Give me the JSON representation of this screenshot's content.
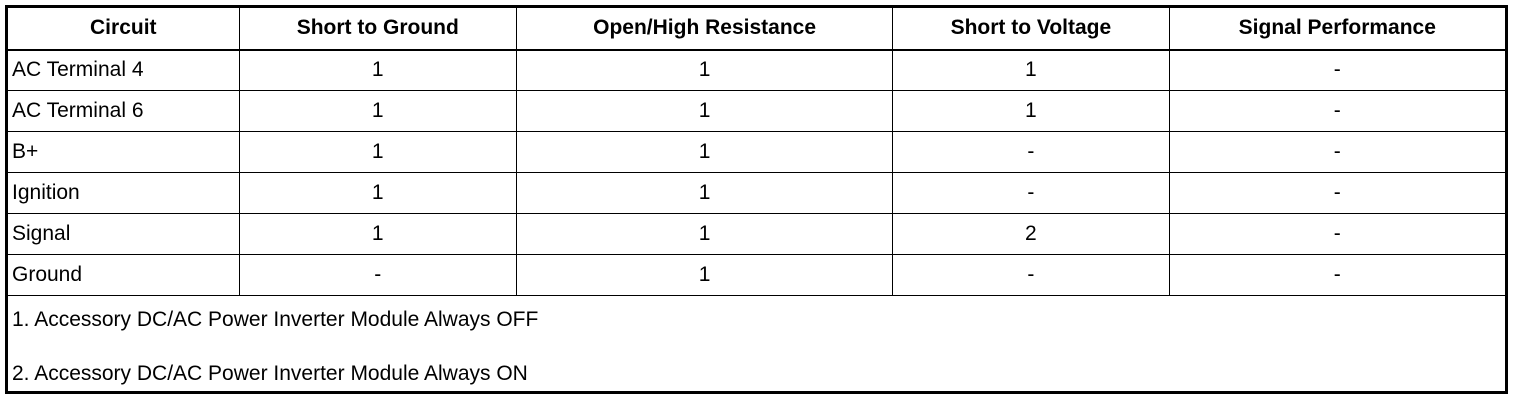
{
  "table": {
    "headers": [
      "Circuit",
      "Short to Ground",
      "Open/High Resistance",
      "Short to Voltage",
      "Signal Performance"
    ],
    "rows": [
      [
        "AC Terminal 4",
        "1",
        "1",
        "1",
        "-"
      ],
      [
        "AC Terminal 6",
        "1",
        "1",
        "1",
        "-"
      ],
      [
        "B+",
        "1",
        "1",
        "-",
        "-"
      ],
      [
        "Ignition",
        "1",
        "1",
        "-",
        "-"
      ],
      [
        "Signal",
        "1",
        "1",
        "2",
        "-"
      ],
      [
        "Ground",
        "-",
        "1",
        "-",
        "-"
      ]
    ],
    "notes": [
      "1. Accessory DC/AC Power Inverter Module Always OFF",
      "2. Accessory DC/AC Power Inverter Module Always ON"
    ]
  }
}
